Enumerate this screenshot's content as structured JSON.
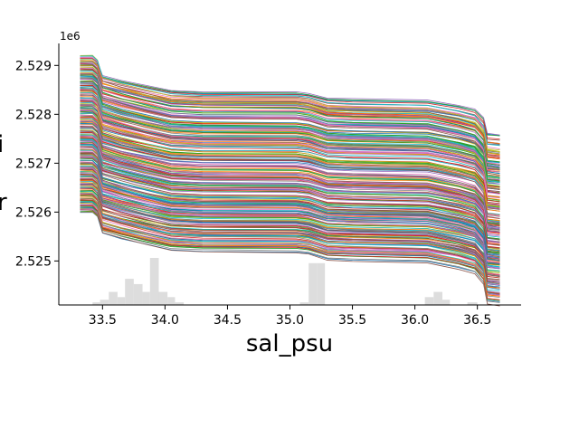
{
  "chart_data": {
    "type": "line",
    "xlabel": "sal_psu",
    "ylabel": "",
    "ylabel_visible_fragments": [
      "i",
      "r"
    ],
    "y_offset_text": "1e6",
    "xlim": [
      33.15,
      36.85
    ],
    "ylim": [
      2524100,
      2529450
    ],
    "x_ticks": [
      33.5,
      34.0,
      34.5,
      35.0,
      35.5,
      36.0,
      36.5
    ],
    "x_tick_labels": [
      "33.5",
      "34.0",
      "34.5",
      "35.0",
      "35.5",
      "36.0",
      "36.5"
    ],
    "y_ticks": [
      2525000,
      2526000,
      2527000,
      2528000,
      2529000
    ],
    "y_tick_labels": [
      "2.525",
      "2.526",
      "2.527",
      "2.528",
      "2.529"
    ],
    "grid": false,
    "spines": "left-bottom",
    "series_count": 300,
    "series_start_range": [
      2526000,
      2529200
    ],
    "series_profile": [
      {
        "x": 33.32,
        "dy": 0
      },
      {
        "x": 33.42,
        "dy": 0
      },
      {
        "x": 33.46,
        "dy": -90
      },
      {
        "x": 33.5,
        "dy": -420
      },
      {
        "x": 33.65,
        "dy": -530
      },
      {
        "x": 33.85,
        "dy": -650
      },
      {
        "x": 34.05,
        "dy": -760
      },
      {
        "x": 34.3,
        "dy": -790
      },
      {
        "x": 35.05,
        "dy": -800
      },
      {
        "x": 35.15,
        "dy": -830
      },
      {
        "x": 35.3,
        "dy": -940
      },
      {
        "x": 35.5,
        "dy": -960
      },
      {
        "x": 36.1,
        "dy": -990
      },
      {
        "x": 36.35,
        "dy": -1110
      },
      {
        "x": 36.48,
        "dy": -1200
      },
      {
        "x": 36.55,
        "dy": -1400
      },
      {
        "x": 36.58,
        "dy": -1770
      },
      {
        "x": 36.68,
        "dy": -1800
      }
    ],
    "histogram": {
      "color": "#dddddd",
      "bins": [
        {
          "x0": 33.42,
          "x1": 33.48,
          "count": 1
        },
        {
          "x0": 33.48,
          "x1": 33.55,
          "count": 2
        },
        {
          "x0": 33.55,
          "x1": 33.62,
          "count": 5
        },
        {
          "x0": 33.62,
          "x1": 33.68,
          "count": 3
        },
        {
          "x0": 33.68,
          "x1": 33.75,
          "count": 10
        },
        {
          "x0": 33.75,
          "x1": 33.82,
          "count": 8
        },
        {
          "x0": 33.82,
          "x1": 33.88,
          "count": 5
        },
        {
          "x0": 33.88,
          "x1": 33.95,
          "count": 18
        },
        {
          "x0": 33.95,
          "x1": 34.02,
          "count": 5
        },
        {
          "x0": 34.02,
          "x1": 34.08,
          "count": 3
        },
        {
          "x0": 34.08,
          "x1": 34.15,
          "count": 1
        },
        {
          "x0": 35.08,
          "x1": 35.15,
          "count": 1
        },
        {
          "x0": 35.15,
          "x1": 35.22,
          "count": 16
        },
        {
          "x0": 35.22,
          "x1": 35.28,
          "count": 16
        },
        {
          "x0": 36.08,
          "x1": 36.15,
          "count": 3
        },
        {
          "x0": 36.15,
          "x1": 36.22,
          "count": 5
        },
        {
          "x0": 36.22,
          "x1": 36.28,
          "count": 2
        },
        {
          "x0": 36.42,
          "x1": 36.5,
          "count": 1
        }
      ]
    },
    "palette": [
      "#1f77b4",
      "#ff7f0e",
      "#2ca02c",
      "#d62728",
      "#9467bd",
      "#8c564b",
      "#e377c2",
      "#7f7f7f",
      "#bcbd22",
      "#17becf"
    ]
  }
}
